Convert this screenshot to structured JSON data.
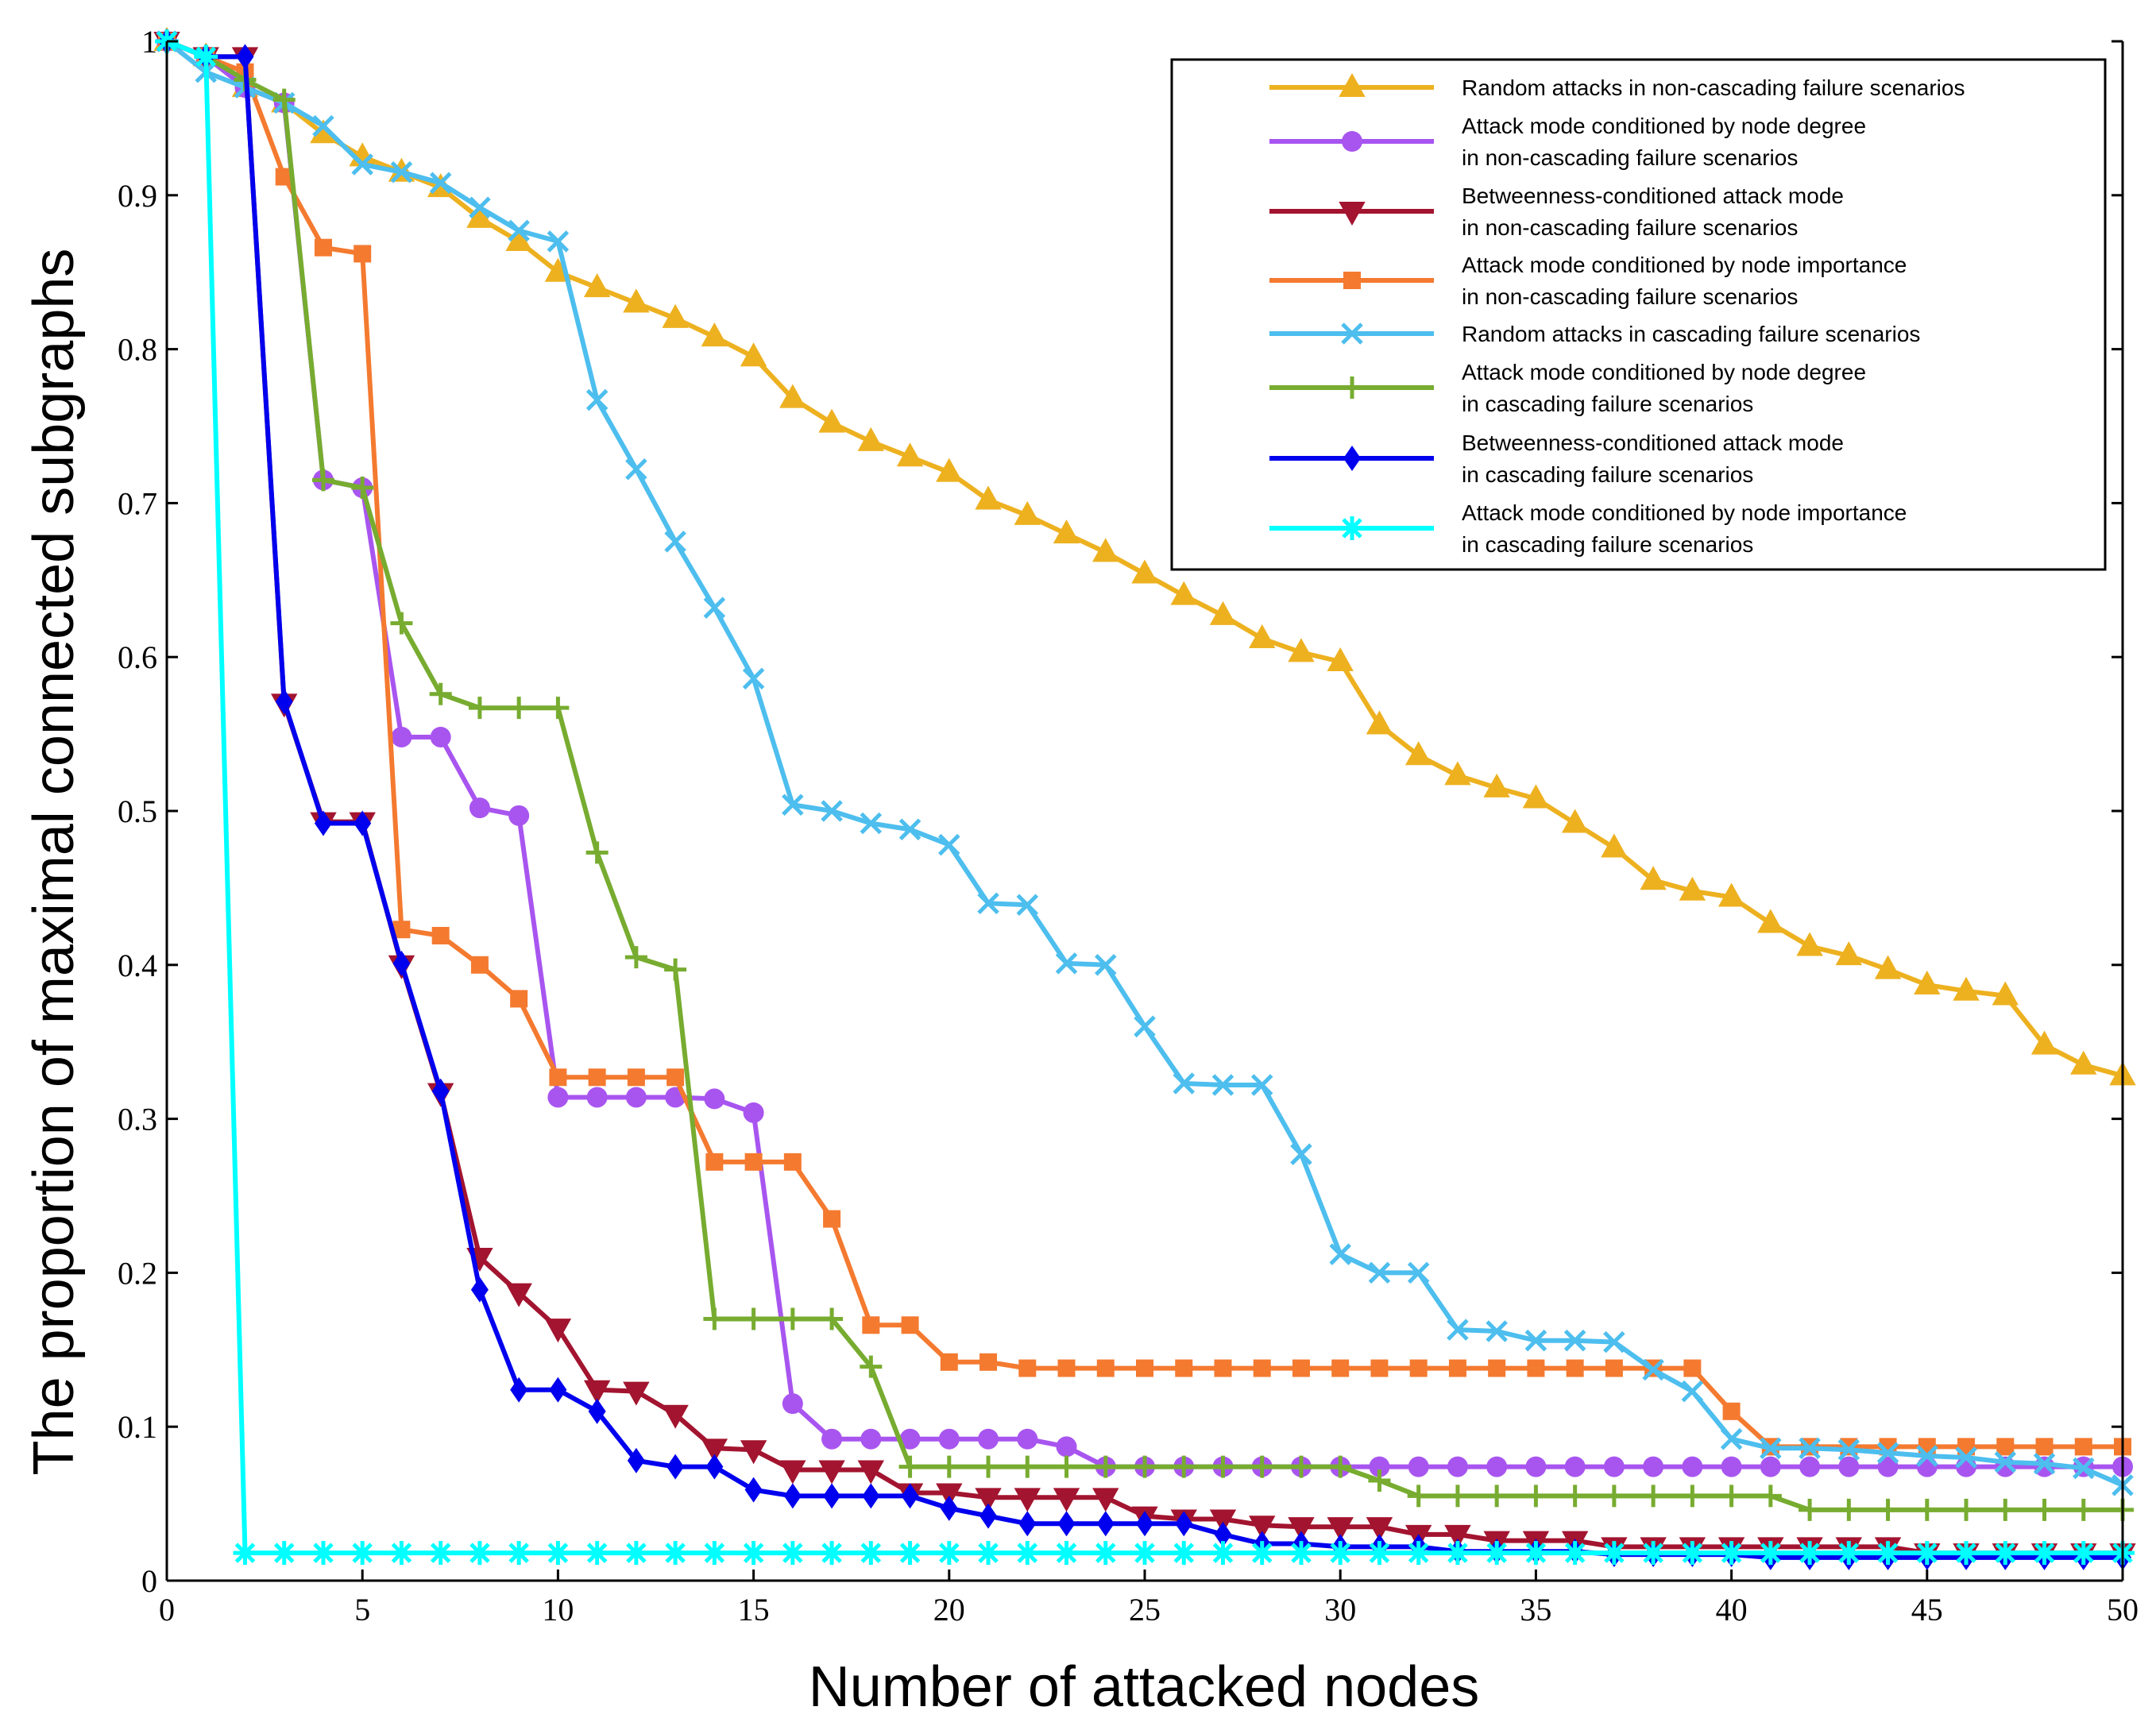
{
  "chart_data": {
    "type": "line",
    "title": "",
    "xlabel": "Number of attacked nodes",
    "ylabel": "The proportion of maximal connected subgraphs",
    "xlim": [
      0,
      50
    ],
    "ylim": [
      0,
      1
    ],
    "xticks": [
      0,
      5,
      10,
      15,
      20,
      25,
      30,
      35,
      40,
      45,
      50
    ],
    "yticks": [
      0,
      0.1,
      0.2,
      0.3,
      0.4,
      0.5,
      0.6,
      0.7,
      0.8,
      0.9,
      1
    ],
    "ytick_labels": [
      "0",
      "0.1",
      "0.2",
      "0.3",
      "0.4",
      "0.5",
      "0.6",
      "0.7",
      "0.8",
      "0.9",
      "1"
    ],
    "legend_position": "top-right",
    "x": [
      0,
      1,
      2,
      3,
      4,
      5,
      6,
      7,
      8,
      9,
      10,
      11,
      12,
      13,
      14,
      15,
      16,
      17,
      18,
      19,
      20,
      21,
      22,
      23,
      24,
      25,
      26,
      27,
      28,
      29,
      30,
      31,
      32,
      33,
      34,
      35,
      36,
      37,
      38,
      39,
      40,
      41,
      42,
      43,
      44,
      45,
      46,
      47,
      48,
      49,
      50
    ],
    "series": [
      {
        "name": "Random attacks in non-cascading failure scenarios",
        "legend_lines": [
          "Random attacks in non-cascading failure scenarios"
        ],
        "color": "#EDB120",
        "marker": "triangle-up",
        "values": [
          1.0,
          0.99,
          0.97,
          0.96,
          0.94,
          0.925,
          0.915,
          0.905,
          0.885,
          0.87,
          0.85,
          0.84,
          0.83,
          0.82,
          0.808,
          0.795,
          0.768,
          0.752,
          0.74,
          0.73,
          0.72,
          0.702,
          0.692,
          0.68,
          0.668,
          0.654,
          0.64,
          0.627,
          0.612,
          0.603,
          0.597,
          0.556,
          0.536,
          0.523,
          0.515,
          0.508,
          0.492,
          0.476,
          0.455,
          0.448,
          0.444,
          0.427,
          0.412,
          0.406,
          0.397,
          0.387,
          0.383,
          0.38,
          0.348,
          0.335,
          0.328
        ]
      },
      {
        "name": "Attack mode conditioned by node degree in non-cascading failure scenarios",
        "legend_lines": [
          "Attack mode conditioned by node degree",
          "in non-cascading failure scenarios"
        ],
        "color": "#A855F0",
        "marker": "circle",
        "values": [
          1.0,
          0.99,
          0.97,
          0.96,
          0.715,
          0.71,
          0.548,
          0.548,
          0.502,
          0.497,
          0.314,
          0.314,
          0.314,
          0.314,
          0.313,
          0.304,
          0.115,
          0.092,
          0.092,
          0.092,
          0.092,
          0.092,
          0.092,
          0.087,
          0.074,
          0.074,
          0.074,
          0.074,
          0.074,
          0.074,
          0.074,
          0.074,
          0.074,
          0.074,
          0.074,
          0.074,
          0.074,
          0.074,
          0.074,
          0.074,
          0.074,
          0.074,
          0.074,
          0.074,
          0.074,
          0.074,
          0.074,
          0.074,
          0.074,
          0.074,
          0.074
        ]
      },
      {
        "name": "Betweenness-conditioned attack mode in non-cascading failure scenarios",
        "legend_lines": [
          "Betweenness-conditioned attack mode",
          "in non-cascading failure scenarios"
        ],
        "color": "#A2142F",
        "marker": "triangle-down",
        "values": [
          1.0,
          0.99,
          0.99,
          0.57,
          0.493,
          0.493,
          0.4,
          0.317,
          0.21,
          0.187,
          0.164,
          0.124,
          0.123,
          0.108,
          0.086,
          0.085,
          0.072,
          0.072,
          0.072,
          0.057,
          0.057,
          0.054,
          0.054,
          0.054,
          0.054,
          0.042,
          0.04,
          0.04,
          0.036,
          0.035,
          0.035,
          0.035,
          0.03,
          0.03,
          0.026,
          0.026,
          0.026,
          0.022,
          0.022,
          0.022,
          0.022,
          0.022,
          0.022,
          0.022,
          0.022,
          0.018,
          0.018,
          0.018,
          0.018,
          0.018,
          0.018
        ]
      },
      {
        "name": "Attack mode conditioned by node importance in non-cascading failure scenarios",
        "legend_lines": [
          "Attack mode conditioned by node importance",
          "in non-cascading failure scenarios"
        ],
        "color": "#F47A30",
        "marker": "square",
        "values": [
          1.0,
          0.99,
          0.98,
          0.912,
          0.866,
          0.862,
          0.423,
          0.419,
          0.4,
          0.378,
          0.327,
          0.327,
          0.327,
          0.327,
          0.272,
          0.272,
          0.272,
          0.235,
          0.166,
          0.166,
          0.142,
          0.142,
          0.138,
          0.138,
          0.138,
          0.138,
          0.138,
          0.138,
          0.138,
          0.138,
          0.138,
          0.138,
          0.138,
          0.138,
          0.138,
          0.138,
          0.138,
          0.138,
          0.138,
          0.138,
          0.11,
          0.087,
          0.087,
          0.087,
          0.087,
          0.087,
          0.087,
          0.087,
          0.087,
          0.087,
          0.087
        ]
      },
      {
        "name": "Random attacks in cascading failure scenarios",
        "legend_lines": [
          "Random attacks in cascading failure scenarios"
        ],
        "color": "#4DBEEE",
        "marker": "x",
        "values": [
          1.0,
          0.98,
          0.97,
          0.96,
          0.945,
          0.92,
          0.915,
          0.908,
          0.892,
          0.877,
          0.87,
          0.767,
          0.722,
          0.675,
          0.632,
          0.586,
          0.504,
          0.5,
          0.492,
          0.488,
          0.478,
          0.44,
          0.439,
          0.401,
          0.4,
          0.36,
          0.323,
          0.322,
          0.322,
          0.277,
          0.212,
          0.2,
          0.2,
          0.163,
          0.162,
          0.156,
          0.156,
          0.155,
          0.137,
          0.123,
          0.092,
          0.086,
          0.086,
          0.085,
          0.083,
          0.081,
          0.08,
          0.077,
          0.076,
          0.073,
          0.062
        ]
      },
      {
        "name": "Attack mode conditioned by node degree in cascading failure scenarios",
        "legend_lines": [
          "Attack mode conditioned by node degree",
          "in cascading failure scenarios"
        ],
        "color": "#77AC30",
        "marker": "plus",
        "values": [
          1.0,
          0.99,
          0.975,
          0.962,
          0.715,
          0.71,
          0.622,
          0.576,
          0.567,
          0.567,
          0.567,
          0.473,
          0.405,
          0.397,
          0.17,
          0.17,
          0.17,
          0.17,
          0.139,
          0.074,
          0.074,
          0.074,
          0.074,
          0.074,
          0.074,
          0.074,
          0.074,
          0.074,
          0.074,
          0.074,
          0.074,
          0.065,
          0.055,
          0.055,
          0.055,
          0.055,
          0.055,
          0.055,
          0.055,
          0.055,
          0.055,
          0.055,
          0.046,
          0.046,
          0.046,
          0.046,
          0.046,
          0.046,
          0.046,
          0.046,
          0.046
        ]
      },
      {
        "name": "Betweenness-conditioned attack mode in cascading failure scenarios",
        "legend_lines": [
          "Betweenness-conditioned attack mode",
          "in cascading failure scenarios"
        ],
        "color": "#0000EE",
        "marker": "diamond",
        "values": [
          1.0,
          0.99,
          0.99,
          0.571,
          0.492,
          0.492,
          0.401,
          0.318,
          0.189,
          0.124,
          0.124,
          0.11,
          0.078,
          0.074,
          0.074,
          0.059,
          0.055,
          0.055,
          0.055,
          0.055,
          0.047,
          0.042,
          0.037,
          0.037,
          0.037,
          0.037,
          0.037,
          0.03,
          0.024,
          0.024,
          0.022,
          0.022,
          0.022,
          0.019,
          0.019,
          0.019,
          0.019,
          0.017,
          0.017,
          0.017,
          0.017,
          0.015,
          0.015,
          0.015,
          0.015,
          0.015,
          0.015,
          0.015,
          0.015,
          0.015,
          0.015
        ]
      },
      {
        "name": "Attack mode conditioned by node importance in cascading failure scenarios",
        "legend_lines": [
          "Attack mode conditioned by node importance",
          "in cascading failure scenarios"
        ],
        "color": "#00FFFF",
        "marker": "asterisk",
        "values": [
          1.0,
          0.99,
          0.018,
          0.018,
          0.018,
          0.018,
          0.018,
          0.018,
          0.018,
          0.018,
          0.018,
          0.018,
          0.018,
          0.018,
          0.018,
          0.018,
          0.018,
          0.018,
          0.018,
          0.018,
          0.018,
          0.018,
          0.018,
          0.018,
          0.018,
          0.018,
          0.018,
          0.018,
          0.018,
          0.018,
          0.018,
          0.018,
          0.018,
          0.018,
          0.018,
          0.018,
          0.018,
          0.018,
          0.018,
          0.018,
          0.018,
          0.018,
          0.018,
          0.018,
          0.018,
          0.018,
          0.018,
          0.018,
          0.018,
          0.018,
          0.018
        ]
      }
    ]
  }
}
